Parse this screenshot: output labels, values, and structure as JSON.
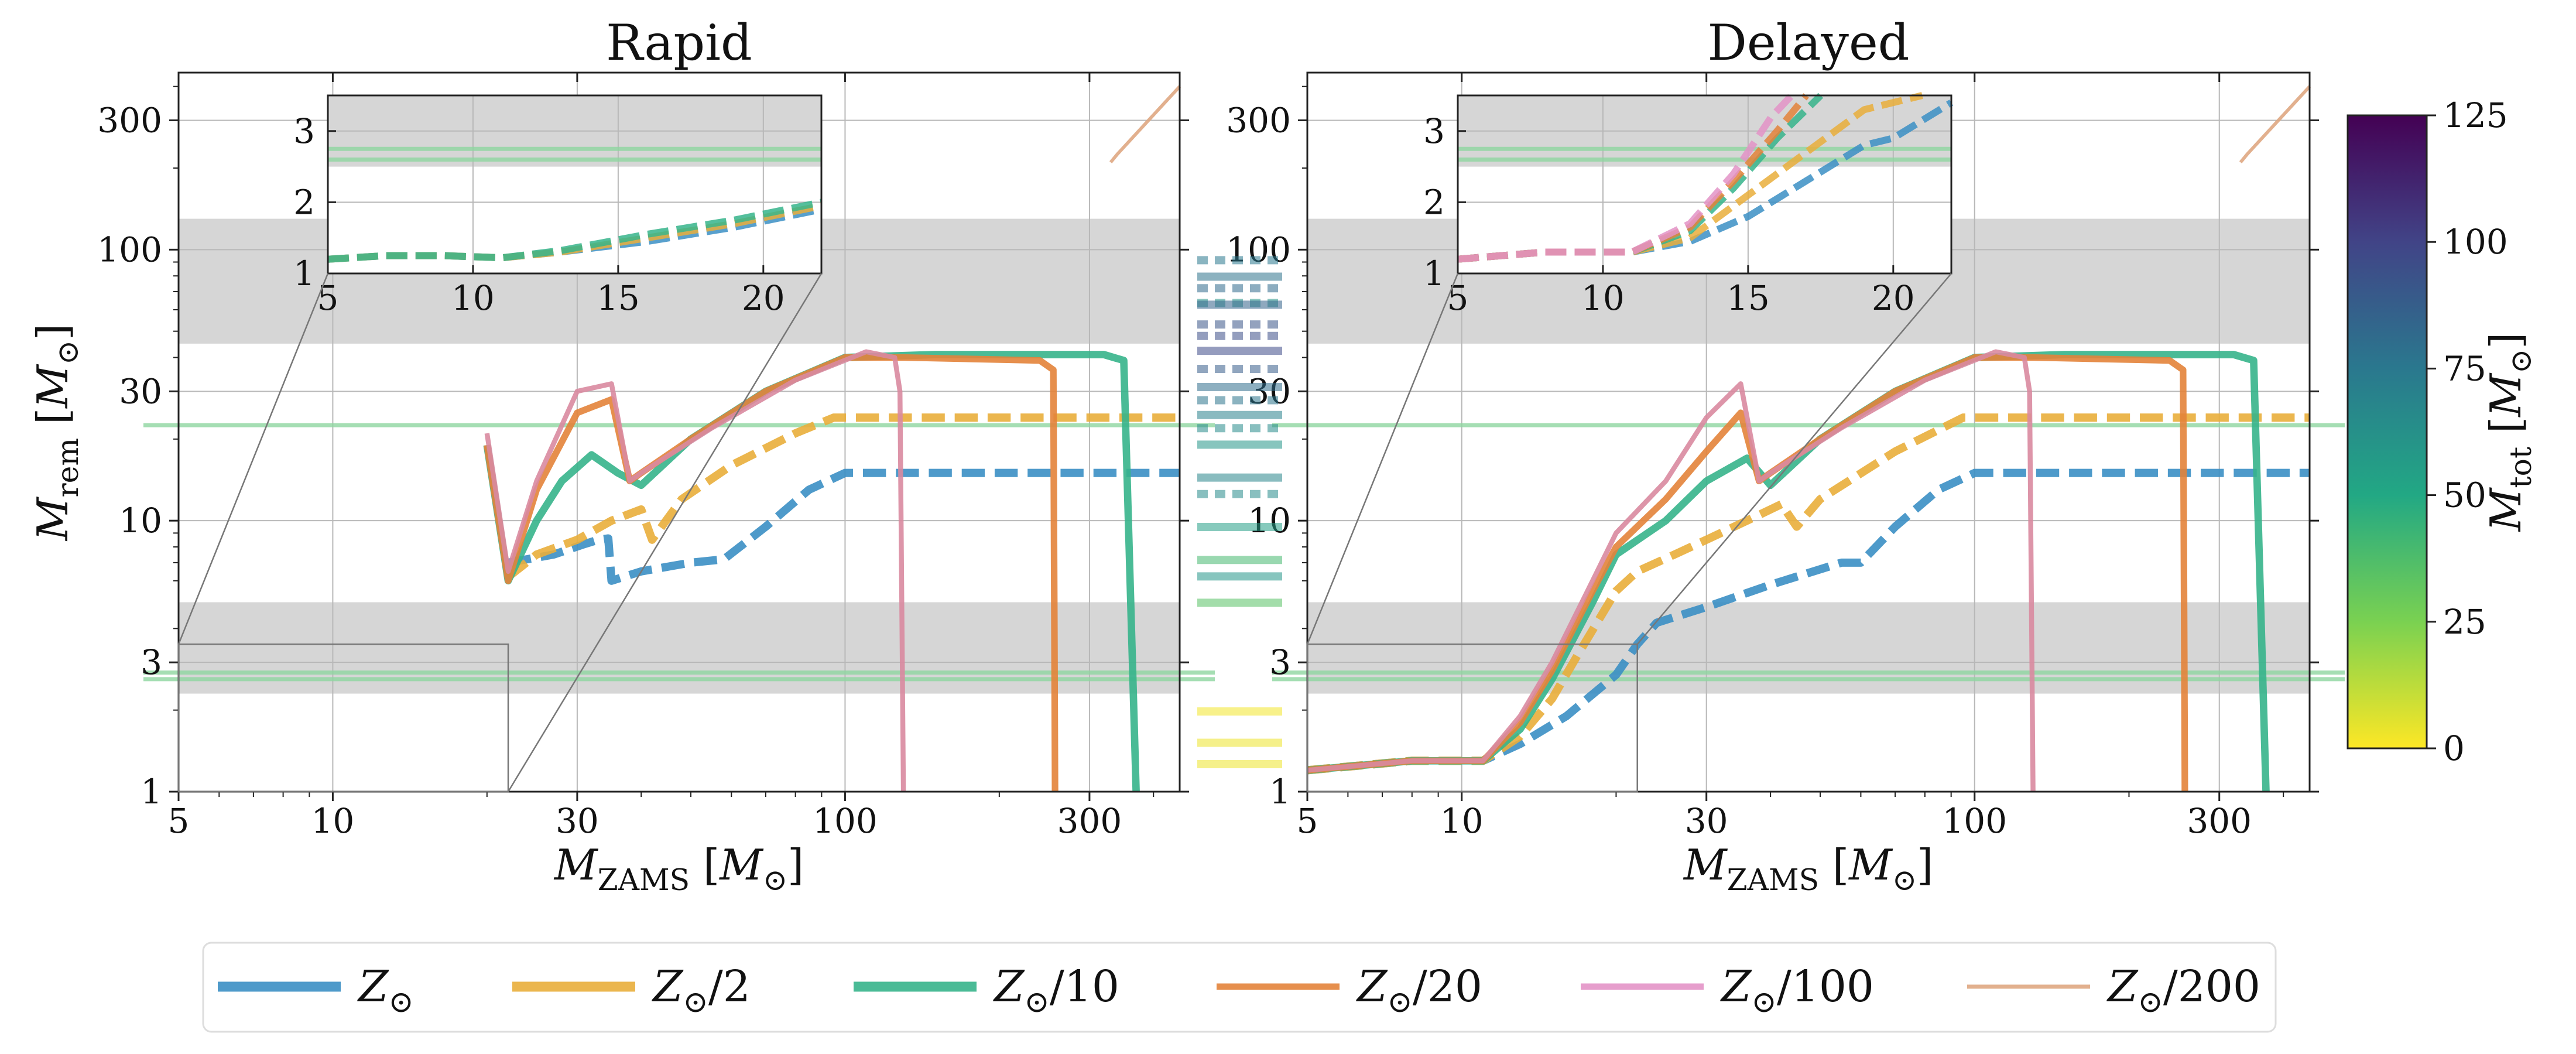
{
  "chart_data": [
    {
      "type": "line",
      "title": "Rapid",
      "xlabel": "M_ZAMS [M_⊙]",
      "ylabel": "M_rem [M_⊙]",
      "xscale": "log",
      "yscale": "log",
      "xlim": [
        5,
        450
      ],
      "ylim": [
        1,
        450
      ],
      "xticks": [
        "5",
        "10",
        "30",
        "100",
        "300"
      ],
      "yticks": [
        "1",
        "3",
        "10",
        "30",
        "100",
        "300"
      ],
      "grid": true,
      "shaded_bands": [
        [
          45,
          130
        ],
        [
          2.3,
          5
        ]
      ],
      "horizontal_lines": [
        22.5,
        2.6,
        2.75
      ],
      "series": [
        {
          "name": "Z_⊙",
          "x": [
            22,
            27,
            31,
            33,
            34.5,
            35,
            40,
            50,
            58,
            70,
            85,
            100,
            150,
            450
          ],
          "y": [
            7,
            7.5,
            8.2,
            8.5,
            8.6,
            6,
            6.5,
            7,
            7.2,
            9.5,
            13,
            15,
            15,
            15
          ]
        },
        {
          "name": "Z_⊙/2",
          "x": [
            22,
            25,
            30,
            35,
            40,
            42,
            48,
            60,
            80,
            95,
            150,
            450
          ],
          "y": [
            6.2,
            7.5,
            8.5,
            10,
            11,
            8.5,
            12,
            16,
            21,
            24,
            24,
            24
          ]
        },
        {
          "name": "Z_⊙/10",
          "x": [
            20,
            22,
            25,
            28,
            32,
            36,
            40,
            50,
            70,
            100,
            150,
            320,
            350,
            370
          ],
          "y": [
            19,
            6,
            10,
            14,
            17.5,
            15,
            13.5,
            20,
            30,
            40,
            41,
            41,
            39,
            1
          ]
        },
        {
          "name": "Z_⊙/20",
          "x": [
            20,
            22,
            25,
            30,
            35,
            38,
            40,
            50,
            70,
            100,
            130,
            240,
            255,
            257
          ],
          "y": [
            19,
            6,
            13,
            25,
            28,
            14,
            15,
            20,
            30,
            40,
            40,
            39,
            36,
            1
          ]
        },
        {
          "name": "Z_⊙/100",
          "x": [
            20,
            22,
            25,
            30,
            35,
            38,
            40,
            55,
            80,
            110,
            125,
            128,
            130
          ],
          "y": [
            21,
            6.5,
            14,
            30,
            32,
            14,
            15,
            22,
            33,
            42,
            40,
            30,
            1
          ]
        },
        {
          "name": "Z_⊙/200",
          "x": [
            330,
            340,
            450
          ],
          "y": [
            210,
            225,
            400
          ]
        }
      ]
    },
    {
      "type": "line",
      "title": "Delayed",
      "xlabel": "M_ZAMS [M_⊙]",
      "xscale": "log",
      "yscale": "log",
      "xlim": [
        5,
        450
      ],
      "ylim": [
        1,
        450
      ],
      "xticks": [
        "5",
        "10",
        "30",
        "100",
        "300"
      ],
      "yticks": [
        "1",
        "3",
        "10",
        "30",
        "100",
        "300"
      ],
      "grid": true,
      "shaded_bands": [
        [
          45,
          130
        ],
        [
          2.3,
          5
        ]
      ],
      "horizontal_lines": [
        22.5,
        2.6,
        2.75
      ],
      "series": [
        {
          "name": "Z_⊙",
          "x": [
            5,
            8,
            11,
            13,
            16,
            20,
            22,
            24,
            30,
            40,
            55,
            60,
            70,
            85,
            100,
            150,
            450
          ],
          "y": [
            1.2,
            1.3,
            1.3,
            1.5,
            1.9,
            2.7,
            3.5,
            4.2,
            4.8,
            5.8,
            7,
            7,
            9.5,
            13,
            15,
            15,
            15
          ]
        },
        {
          "name": "Z_⊙/2",
          "x": [
            5,
            8,
            11,
            13,
            15,
            17,
            20,
            22,
            26,
            30,
            38,
            42,
            45,
            50,
            70,
            95,
            150,
            450
          ],
          "y": [
            1.2,
            1.3,
            1.3,
            1.6,
            2.2,
            3.3,
            5.5,
            6.5,
            7.5,
            8.5,
            10.5,
            11.5,
            9.5,
            12,
            18,
            24,
            24,
            24
          ]
        },
        {
          "name": "Z_⊙/10",
          "x": [
            5,
            8,
            11,
            13,
            15,
            18,
            20,
            25,
            30,
            36,
            40,
            50,
            70,
            100,
            150,
            320,
            350,
            370
          ],
          "y": [
            1.2,
            1.3,
            1.3,
            1.7,
            2.6,
            5,
            7.5,
            10,
            14,
            17,
            13.5,
            20,
            30,
            40,
            41,
            41,
            39,
            1
          ]
        },
        {
          "name": "Z_⊙/20",
          "x": [
            5,
            8,
            11,
            13,
            15,
            18,
            20,
            25,
            30,
            35,
            38,
            40,
            50,
            70,
            100,
            130,
            240,
            255,
            257
          ],
          "y": [
            1.2,
            1.3,
            1.3,
            1.8,
            2.8,
            5.5,
            8,
            12,
            18,
            25,
            14,
            15,
            20,
            30,
            40,
            40,
            39,
            36,
            1
          ]
        },
        {
          "name": "Z_⊙/100",
          "x": [
            5,
            8,
            11,
            13,
            15,
            18,
            20,
            25,
            30,
            35,
            38,
            40,
            55,
            80,
            110,
            125,
            128,
            130
          ],
          "y": [
            1.2,
            1.3,
            1.3,
            1.9,
            3,
            6,
            9,
            14,
            24,
            32,
            14,
            15,
            22,
            33,
            42,
            40,
            30,
            1
          ]
        },
        {
          "name": "Z_⊙/200",
          "x": [
            330,
            340,
            450
          ],
          "y": [
            210,
            225,
            400
          ]
        }
      ]
    }
  ],
  "insets": {
    "xlim": [
      5,
      22
    ],
    "ylim": [
      1,
      3.5
    ],
    "xticks": [
      "5",
      "10",
      "15",
      "20"
    ],
    "yticks": [
      "1",
      "2",
      "3"
    ],
    "shaded_band": [
      2.5,
      3.5
    ],
    "horizontal_lines": [
      2.6,
      2.75
    ],
    "rapid_series": [
      {
        "x": [
          5,
          7,
          9,
          11,
          13,
          16,
          19,
          22
        ],
        "y": [
          1.2,
          1.25,
          1.25,
          1.22,
          1.3,
          1.45,
          1.65,
          1.9
        ]
      },
      {
        "x": [
          5,
          7,
          9,
          11,
          13,
          16,
          19,
          22
        ],
        "y": [
          1.2,
          1.25,
          1.25,
          1.22,
          1.3,
          1.5,
          1.7,
          1.95
        ]
      },
      {
        "x": [
          5,
          7,
          9,
          11,
          13,
          16,
          19,
          22
        ],
        "y": [
          1.2,
          1.25,
          1.25,
          1.22,
          1.32,
          1.55,
          1.75,
          2.0
        ]
      }
    ],
    "delayed_series": [
      {
        "x": [
          5,
          8,
          11,
          13,
          15,
          17,
          19,
          20,
          22
        ],
        "y": [
          1.2,
          1.3,
          1.3,
          1.45,
          1.8,
          2.3,
          2.8,
          2.9,
          3.4
        ]
      },
      {
        "x": [
          5,
          8,
          11,
          13,
          15,
          17,
          19,
          21
        ],
        "y": [
          1.2,
          1.3,
          1.3,
          1.5,
          2.1,
          2.7,
          3.3,
          3.5
        ]
      },
      {
        "x": [
          5,
          8,
          11,
          13,
          14.5,
          16,
          17.5
        ],
        "y": [
          1.2,
          1.3,
          1.3,
          1.6,
          2.2,
          2.9,
          3.5
        ]
      },
      {
        "x": [
          5,
          8,
          11,
          13,
          14.5,
          16,
          17
        ],
        "y": [
          1.2,
          1.3,
          1.3,
          1.65,
          2.3,
          3.0,
          3.5
        ]
      },
      {
        "x": [
          5,
          8,
          11,
          13,
          14.5,
          15.8,
          16.5
        ],
        "y": [
          1.2,
          1.3,
          1.3,
          1.7,
          2.4,
          3.2,
          3.5
        ]
      }
    ]
  },
  "colorbar": {
    "label": "M_tot [M_⊙]",
    "min": 0,
    "max": 125,
    "ticks": [
      "0",
      "25",
      "50",
      "75",
      "100",
      "125"
    ],
    "colormap": "viridis_r",
    "stops": [
      "#fde725",
      "#7ad151",
      "#22a884",
      "#2a788e",
      "#414487",
      "#440154"
    ]
  },
  "gw_markers": [
    {
      "m": 60,
      "y": 184,
      "dotted": true
    },
    {
      "m": 75,
      "y": 158,
      "dotted": true
    },
    {
      "m": 78,
      "y": 168,
      "dotted": false
    },
    {
      "m": 82,
      "y": 175,
      "dotted": true
    },
    {
      "m": 85,
      "y": 185,
      "dotted": false
    },
    {
      "m": 92,
      "y": 197,
      "dotted": true
    },
    {
      "m": 95,
      "y": 204,
      "dotted": true
    },
    {
      "m": 97,
      "y": 213,
      "dotted": false
    },
    {
      "m": 88,
      "y": 224,
      "dotted": true
    },
    {
      "m": 80,
      "y": 235,
      "dotted": false
    },
    {
      "m": 77,
      "y": 243,
      "dotted": true
    },
    {
      "m": 70,
      "y": 252,
      "dotted": false
    },
    {
      "m": 65,
      "y": 260,
      "dotted": true
    },
    {
      "m": 60,
      "y": 270,
      "dotted": false
    },
    {
      "m": 68,
      "y": 290,
      "dotted": false
    },
    {
      "m": 65,
      "y": 300,
      "dotted": true
    },
    {
      "m": 55,
      "y": 320,
      "dotted": false
    },
    {
      "m": 40,
      "y": 340,
      "dotted": false
    },
    {
      "m": 60,
      "y": 350,
      "dotted": false
    },
    {
      "m": 35,
      "y": 366,
      "dotted": false
    },
    {
      "m": 2,
      "y": 432,
      "dotted": false
    },
    {
      "m": 3,
      "y": 451,
      "dotted": false
    },
    {
      "m": 3,
      "y": 464,
      "dotted": false
    }
  ],
  "legend": [
    {
      "label": "Z_⊙",
      "color": "#3b8fc4",
      "style": "dashed-thick"
    },
    {
      "label": "Z_⊙/2",
      "color": "#e9ae3b",
      "style": "dashed-thick"
    },
    {
      "label": "Z_⊙/10",
      "color": "#36b48b",
      "style": "solid-thick"
    },
    {
      "label": "Z_⊙/20",
      "color": "#e3833a",
      "style": "solid"
    },
    {
      "label": "Z_⊙/100",
      "color": "#e393c7",
      "style": "solid"
    },
    {
      "label": "Z_⊙/200",
      "color": "#dfa782",
      "style": "thin"
    }
  ]
}
